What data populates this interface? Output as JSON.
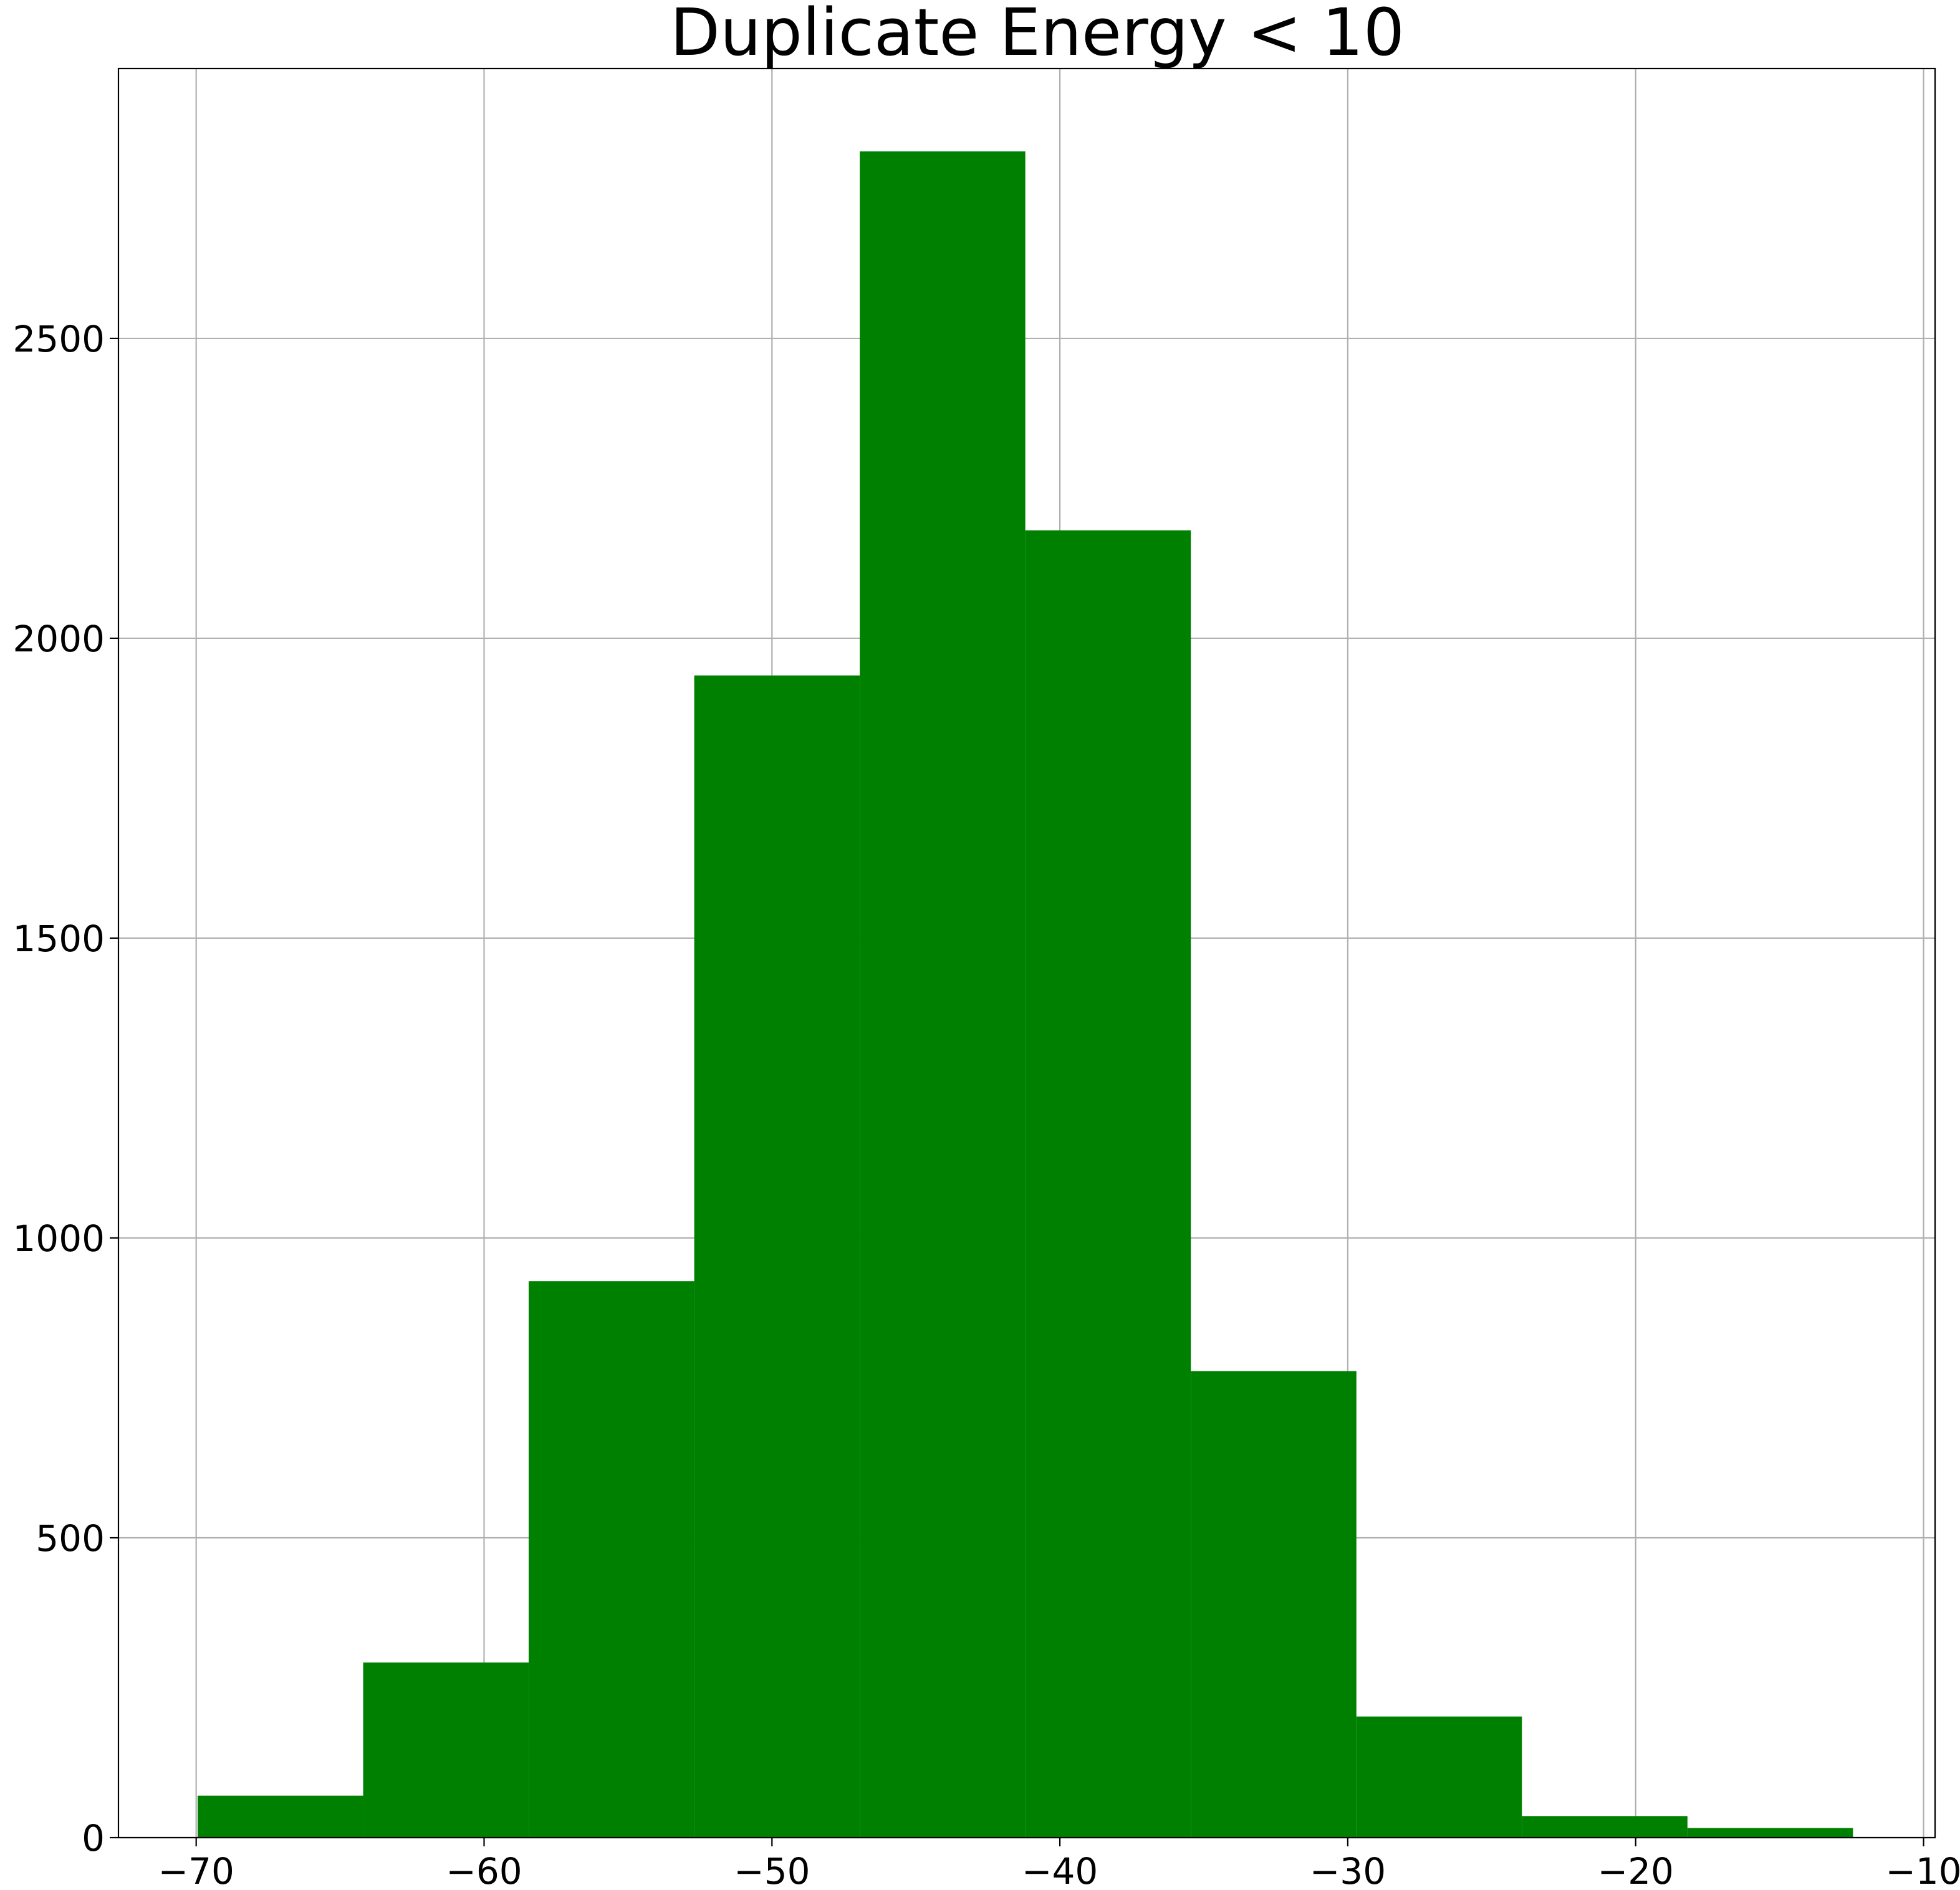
{
  "chart_data": {
    "type": "bar",
    "title": "Duplicate Energy < 10",
    "xlabel": "",
    "ylabel": "",
    "bin_edges": [
      -69.95,
      -64.2,
      -58.45,
      -52.7,
      -46.95,
      -41.2,
      -35.45,
      -29.7,
      -23.95,
      -18.2,
      -12.45
    ],
    "values": [
      70,
      292,
      928,
      1938,
      2812,
      2180,
      778,
      202,
      36,
      16
    ],
    "xlim": [
      -72.7,
      -9.6
    ],
    "ylim": [
      0,
      2950
    ],
    "x_ticks": [
      -70,
      -60,
      -50,
      -40,
      -30,
      -20,
      -10
    ],
    "x_tick_labels": [
      "−70",
      "−60",
      "−50",
      "−40",
      "−30",
      "−20",
      "−10"
    ],
    "y_ticks": [
      0,
      500,
      1000,
      1500,
      2000,
      2500
    ],
    "y_tick_labels": [
      "0",
      "500",
      "1000",
      "1500",
      "2000",
      "2500"
    ],
    "grid": true,
    "bar_color": "#008000",
    "grid_color": "#b0b0b0"
  }
}
